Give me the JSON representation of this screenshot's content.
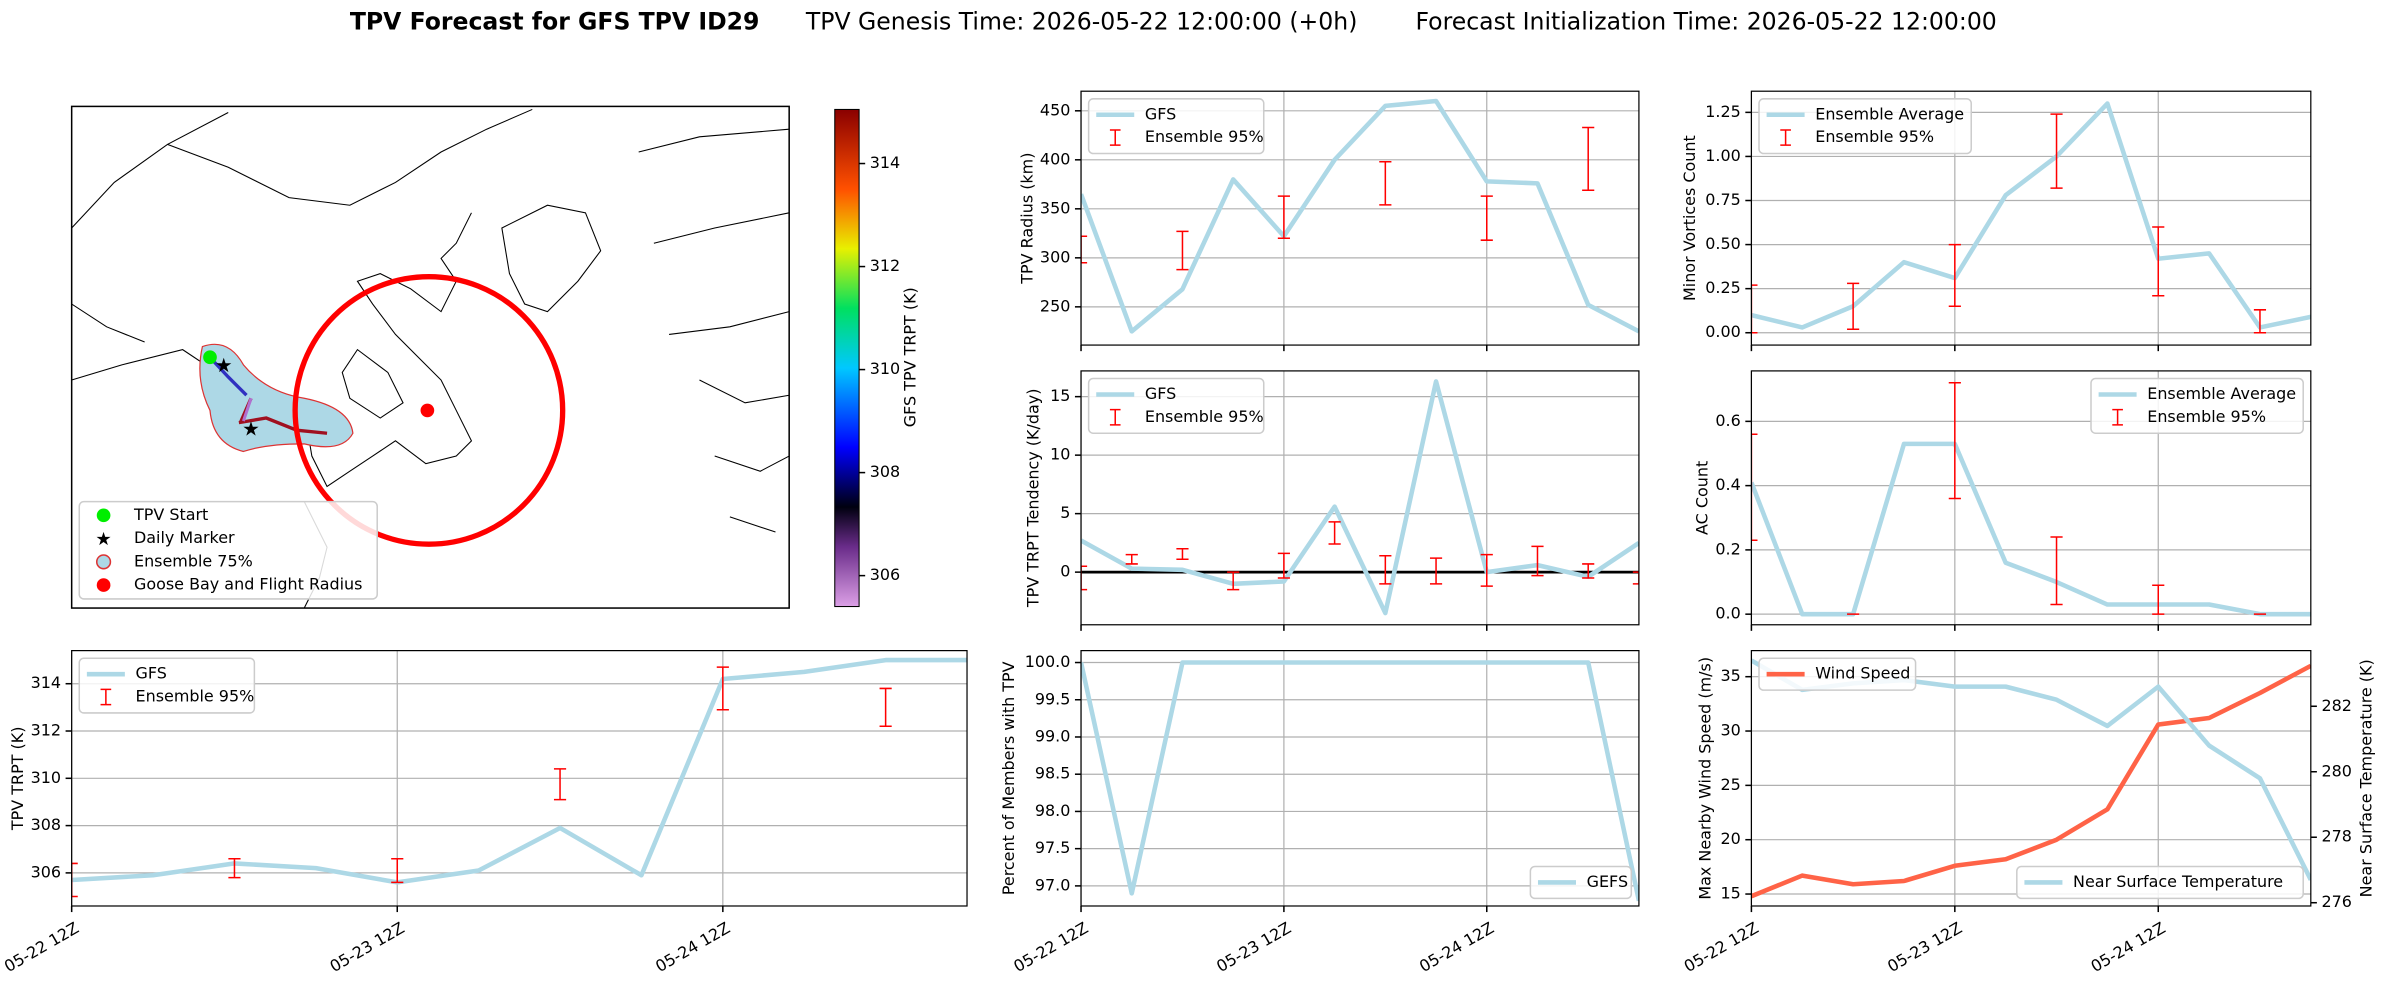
{
  "title": {
    "bold": "TPV Forecast for GFS TPV ID29",
    "genesis": "TPV Genesis Time: 2026-05-22 12:00:00 (+0h)",
    "init": "Forecast Initialization Time: 2026-05-22 12:00:00"
  },
  "map": {
    "legend": [
      "TPV Start",
      "Daily Marker",
      "Ensemble 75%",
      "Goose Bay and Flight Radius"
    ],
    "colorbar": {
      "label": "GFS TPV TRPT (K)",
      "lim": [
        305.4,
        315.05
      ],
      "ticks": [
        306,
        308,
        310,
        312,
        314
      ]
    }
  },
  "chart_data": [
    {
      "type": "line",
      "ylabel": "TPV TRPT (K)",
      "x": [
        0,
        6,
        12,
        18,
        24,
        30,
        36,
        42,
        48,
        54,
        60,
        66
      ],
      "xlim": [
        0,
        66
      ],
      "xticks": [
        {
          "value": 0,
          "label": "05-22 12Z"
        },
        {
          "value": 24,
          "label": "05-23 12Z"
        },
        {
          "value": 48,
          "label": "05-24 12Z"
        }
      ],
      "ylim": [
        304.6,
        315.4
      ],
      "yticks": [
        306,
        308,
        310,
        312,
        314
      ],
      "grid": true,
      "legend": "upper left",
      "series": [
        {
          "name": "GFS",
          "color": "#add8e6",
          "values": [
            305.7,
            305.9,
            306.4,
            306.2,
            305.6,
            306.1,
            307.9,
            305.9,
            314.2,
            314.5,
            315.0,
            315.0
          ]
        }
      ],
      "error_bars": {
        "name": "Ensemble 95%",
        "color": "red",
        "x": [
          0,
          12,
          24,
          36,
          48,
          60
        ],
        "low": [
          305.0,
          305.8,
          305.6,
          309.1,
          312.9,
          312.2
        ],
        "high": [
          306.4,
          306.6,
          306.6,
          310.4,
          314.7,
          313.8
        ]
      }
    },
    {
      "type": "line",
      "ylabel": "TPV Radius (km)",
      "x": [
        0,
        6,
        12,
        18,
        24,
        30,
        36,
        42,
        48,
        54,
        60,
        66
      ],
      "xlim": [
        0,
        66
      ],
      "xticks": [
        0,
        24,
        48
      ],
      "ylim": [
        211,
        470
      ],
      "yticks": [
        250,
        300,
        350,
        400,
        450
      ],
      "grid": true,
      "legend": "upper left",
      "series": [
        {
          "name": "GFS",
          "color": "#add8e6",
          "values": [
            365,
            225,
            268,
            380,
            322,
            400,
            455,
            460,
            378,
            376,
            252,
            225
          ]
        }
      ],
      "error_bars": {
        "name": "Ensemble 95%",
        "color": "red",
        "x": [
          0,
          12,
          24,
          36,
          48,
          60
        ],
        "low": [
          295,
          288,
          320,
          354,
          318,
          369
        ],
        "high": [
          322,
          327,
          363,
          398,
          363,
          433
        ]
      }
    },
    {
      "type": "line",
      "ylabel": "TPV TRPT Tendency (K/day)",
      "x": [
        0,
        6,
        12,
        18,
        24,
        30,
        36,
        42,
        48,
        54,
        60,
        66
      ],
      "xlim": [
        0,
        66
      ],
      "xticks": [
        0,
        24,
        48
      ],
      "ylim": [
        -4.5,
        17.2
      ],
      "yticks": [
        0,
        5,
        10,
        15
      ],
      "grid": true,
      "legend": "upper left",
      "hline": 0,
      "series": [
        {
          "name": "GFS",
          "color": "#add8e6",
          "values": [
            2.7,
            0.3,
            0.2,
            -1.0,
            -0.8,
            5.6,
            -3.5,
            16.3,
            0.0,
            0.6,
            -0.4,
            2.5
          ]
        }
      ],
      "error_bars": {
        "name": "Ensemble 95%",
        "color": "red",
        "x": [
          0,
          6,
          12,
          18,
          24,
          30,
          36,
          42,
          48,
          54,
          60,
          66
        ],
        "low": [
          -1.5,
          0.7,
          1.1,
          -1.5,
          -0.5,
          2.4,
          -1.0,
          -1.0,
          -1.2,
          -0.3,
          -0.5,
          -1.0
        ],
        "high": [
          0.5,
          1.5,
          2.0,
          0.0,
          1.6,
          4.3,
          1.4,
          1.2,
          1.5,
          2.2,
          0.7,
          0.0
        ]
      }
    },
    {
      "type": "line",
      "ylabel": "Percent of Members with TPV",
      "x": [
        0,
        6,
        12,
        18,
        24,
        30,
        36,
        42,
        48,
        54,
        60,
        66
      ],
      "xlim": [
        0,
        66
      ],
      "xticks": [
        {
          "value": 0,
          "label": "05-22 12Z"
        },
        {
          "value": 24,
          "label": "05-23 12Z"
        },
        {
          "value": 48,
          "label": "05-24 12Z"
        }
      ],
      "ylim": [
        96.73,
        100.16
      ],
      "yticks": [
        {
          "value": 97,
          "label": "97.0"
        },
        97.5,
        {
          "value": 98,
          "label": "98.0"
        },
        98.5,
        {
          "value": 99,
          "label": "99.0"
        },
        99.5,
        {
          "value": 100,
          "label": "100.0"
        }
      ],
      "grid": true,
      "legend": "lower right",
      "series": [
        {
          "name": "GEFS",
          "color": "#add8e6",
          "values": [
            100,
            96.9,
            100,
            100,
            100,
            100,
            100,
            100,
            100,
            100,
            100,
            96.8
          ]
        }
      ]
    },
    {
      "type": "line",
      "ylabel": "Minor Vortices Count",
      "x": [
        0,
        6,
        12,
        18,
        24,
        30,
        36,
        42,
        48,
        54,
        60,
        66
      ],
      "xlim": [
        0,
        66
      ],
      "xticks": [
        0,
        24,
        48
      ],
      "ylim": [
        -0.07,
        1.37
      ],
      "yticks": [
        {
          "value": 0,
          "label": "0.00"
        },
        0.25,
        {
          "value": 0.5,
          "label": "0.50"
        },
        0.75,
        {
          "value": 1,
          "label": "1.00"
        },
        1.25
      ],
      "grid": true,
      "legend": "upper left",
      "series": [
        {
          "name": "Ensemble Average",
          "color": "#add8e6",
          "values": [
            0.1,
            0.03,
            0.15,
            0.4,
            0.31,
            0.78,
            1.0,
            1.3,
            0.42,
            0.45,
            0.03,
            0.09
          ]
        }
      ],
      "error_bars": {
        "name": "Ensemble 95%",
        "color": "red",
        "x": [
          0,
          12,
          24,
          36,
          48,
          60
        ],
        "low": [
          0.0,
          0.02,
          0.15,
          0.82,
          0.21,
          0.0
        ],
        "high": [
          0.27,
          0.28,
          0.5,
          1.24,
          0.6,
          0.13
        ]
      }
    },
    {
      "type": "line",
      "ylabel": "AC Count",
      "x": [
        0,
        6,
        12,
        18,
        24,
        30,
        36,
        42,
        48,
        54,
        60,
        66
      ],
      "xlim": [
        0,
        66
      ],
      "xticks": [
        0,
        24,
        48
      ],
      "ylim": [
        -0.033,
        0.757
      ],
      "yticks": [
        {
          "value": 0,
          "label": "0.0"
        },
        0.2,
        0.4,
        0.6
      ],
      "grid": true,
      "legend": "upper right",
      "series": [
        {
          "name": "Ensemble Average",
          "color": "#add8e6",
          "values": [
            0.41,
            0.0,
            0.0,
            0.53,
            0.53,
            0.16,
            0.1,
            0.03,
            0.03,
            0.03,
            0.0,
            0.0
          ]
        }
      ],
      "error_bars": {
        "name": "Ensemble 95%",
        "color": "red",
        "x": [
          0,
          12,
          24,
          36,
          48,
          60
        ],
        "low": [
          0.23,
          0.0,
          0.36,
          0.03,
          0.0,
          0.0
        ],
        "high": [
          0.56,
          0.0,
          0.72,
          0.24,
          0.09,
          0.0
        ]
      }
    },
    {
      "type": "line",
      "ylabel": "Max Nearby Wind Speed (m/s)",
      "ylabel_color": "#ff6347",
      "y2label": "Near Surface Temperature (K)",
      "y2label_color": "#4169e1",
      "x": [
        0,
        6,
        12,
        18,
        24,
        30,
        36,
        42,
        48,
        54,
        60,
        66
      ],
      "xlim": [
        0,
        66
      ],
      "xticks": [
        {
          "value": 0,
          "label": "05-22 12Z"
        },
        {
          "value": 24,
          "label": "05-23 12Z"
        },
        {
          "value": 48,
          "label": "05-24 12Z"
        }
      ],
      "ylim": [
        13.9,
        37.4
      ],
      "yticks": [
        15,
        20,
        25,
        30,
        35
      ],
      "y2lim": [
        275.9,
        283.7
      ],
      "y2ticks": [
        276,
        278,
        280,
        282
      ],
      "grid": true,
      "series": [
        {
          "name": "Wind Speed",
          "color": "#ff6347",
          "legend": "upper left",
          "values": [
            14.8,
            16.7,
            15.9,
            16.2,
            17.6,
            18.2,
            20.0,
            22.8,
            30.6,
            31.2,
            33.5,
            36.0
          ]
        },
        {
          "name": "Near Surface Temperature",
          "color": "#add8e6",
          "axis": "y2",
          "legend": "lower right",
          "values": [
            283.4,
            282.5,
            282.7,
            282.8,
            282.6,
            282.6,
            282.2,
            281.4,
            282.6,
            280.8,
            279.8,
            276.7
          ]
        }
      ]
    }
  ]
}
